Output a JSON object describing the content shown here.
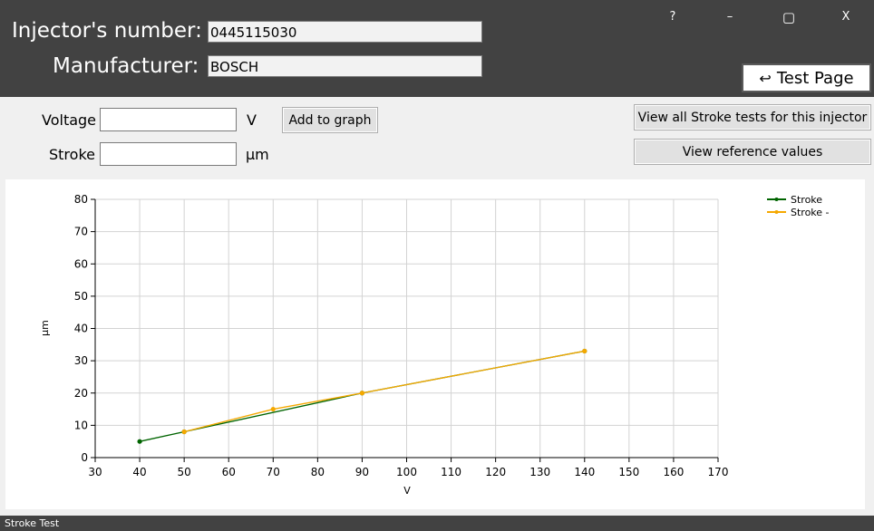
{
  "header": {
    "injector_label": "Injector's number:",
    "injector_value": "0445115030",
    "manufacturer_label": "Manufacturer:",
    "manufacturer_value": "BOSCH",
    "window_controls": {
      "help": "?",
      "minimize": "–",
      "maximize": "▢",
      "close": "X"
    },
    "test_page_label": "Test Page",
    "test_page_icon": "return-arrow-icon"
  },
  "form": {
    "voltage_label": "Voltage",
    "voltage_value": "",
    "voltage_unit": "V",
    "stroke_label": "Stroke",
    "stroke_value": "",
    "stroke_unit": "µm",
    "add_button": "Add to graph",
    "view_all_button": "View all Stroke tests for this injector",
    "view_ref_button": "View reference values"
  },
  "chart_data": {
    "type": "line",
    "xlabel": "V",
    "ylabel": "µm",
    "xlim": [
      30,
      170
    ],
    "ylim": [
      0,
      80
    ],
    "xticks": [
      30,
      40,
      50,
      60,
      70,
      80,
      90,
      100,
      110,
      120,
      130,
      140,
      150,
      160,
      170
    ],
    "yticks": [
      0,
      10,
      20,
      30,
      40,
      50,
      60,
      70,
      80
    ],
    "grid": true,
    "legend_position": "top-right",
    "series": [
      {
        "name": "Stroke",
        "color": "#006400",
        "x": [
          40,
          50,
          90,
          140
        ],
        "y": [
          5,
          8,
          20,
          33
        ]
      },
      {
        "name": "Stroke -",
        "color": "#f5a800",
        "x": [
          50,
          70,
          90,
          140
        ],
        "y": [
          8,
          15,
          20,
          33
        ]
      }
    ]
  },
  "status": {
    "text": "Stroke Test"
  }
}
